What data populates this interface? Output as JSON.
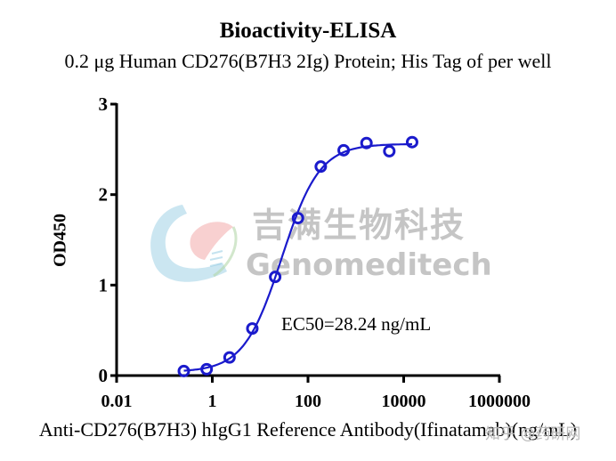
{
  "chart_data": {
    "type": "scatter",
    "title": "Bioactivity-ELISA",
    "subtitle": "0.2 μg Human CD276(B7H3 2Ig) Protein; His Tag of per well",
    "xlabel": "Anti-CD276(B7H3) hIgG1 Reference Antibody(Ifinatamab)(ng/mL)",
    "ylabel": "OD450",
    "xscale": "log",
    "xlim": [
      0.01,
      1000000
    ],
    "ylim": [
      0,
      3
    ],
    "xticks": [
      "0.01",
      "1",
      "100",
      "10000",
      "1000000"
    ],
    "yticks": [
      "0",
      "1",
      "2",
      "3"
    ],
    "grid": false,
    "annotation": "EC50=28.24 ng/mL",
    "series": [
      {
        "name": "Anti-CD276(B7H3) hIgG1 Reference Antibody",
        "color": "#1a1acc",
        "marker": "open-circle",
        "fit": "4PL sigmoid",
        "x": [
          0.254,
          0.762,
          2.29,
          6.86,
          20.6,
          61.7,
          185,
          556,
          1667,
          5000,
          15000
        ],
        "y": [
          0.05,
          0.07,
          0.2,
          0.52,
          1.09,
          1.74,
          2.31,
          2.49,
          2.57,
          2.48,
          2.58
        ]
      }
    ],
    "fit_params": {
      "bottom": 0.04,
      "top": 2.56,
      "ec50": 28.24,
      "hill": 1.1
    }
  },
  "watermark": {
    "brand_cn": "吉满生物科技",
    "brand_en": "Genomeditech",
    "source": "知乎 @药研网"
  },
  "colors": {
    "series": "#1a1acc",
    "axis": "#000000"
  }
}
